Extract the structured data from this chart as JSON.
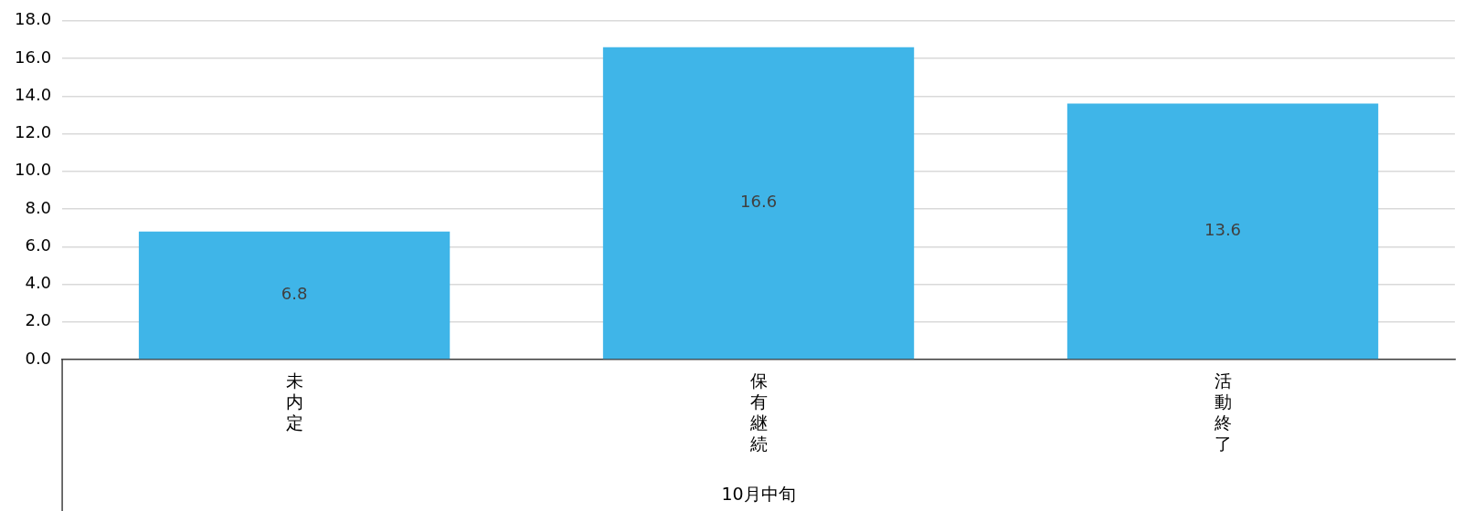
{
  "chart_data": {
    "type": "bar",
    "xlabel": "10月中旬",
    "categories": [
      "未内定",
      "保有継続",
      "活動終了"
    ],
    "values": [
      6.8,
      16.6,
      13.6
    ],
    "color": "#3fb5e8",
    "ylim": [
      0,
      18
    ],
    "yticks": [
      {
        "value": 0,
        "label": "0.0"
      },
      {
        "value": 2,
        "label": "2.0"
      },
      {
        "value": 4,
        "label": "4.0"
      },
      {
        "value": 6,
        "label": "6.0"
      },
      {
        "value": 8,
        "label": "8.0"
      },
      {
        "value": 10,
        "label": "10.0"
      },
      {
        "value": 12,
        "label": "12.0"
      },
      {
        "value": 14,
        "label": "14.0"
      },
      {
        "value": 16,
        "label": "16.0"
      },
      {
        "value": 18,
        "label": "18.0"
      }
    ],
    "grid": "y",
    "data_labels": true
  }
}
